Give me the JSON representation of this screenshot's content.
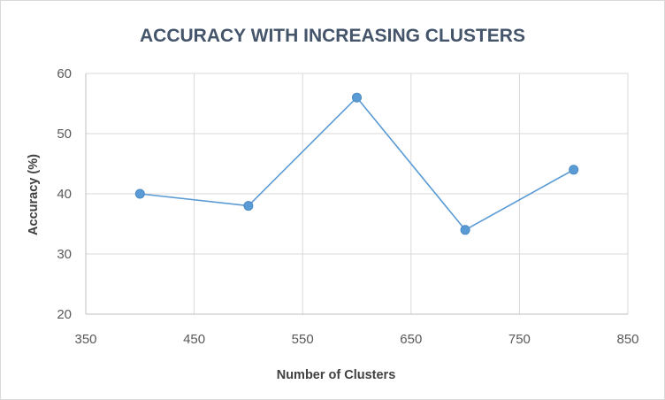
{
  "chart_data": {
    "type": "scatter",
    "title": "ACCURACY WITH INCREASING CLUSTERS",
    "xlabel": "Number of Clusters",
    "ylabel": "Accuracy (%)",
    "xlim": [
      350,
      850
    ],
    "ylim": [
      20,
      60
    ],
    "xticks": [
      350,
      450,
      550,
      650,
      750,
      850
    ],
    "yticks": [
      20,
      30,
      40,
      50,
      60
    ],
    "grid": true,
    "lines_connect_points": true,
    "series": [
      {
        "x": [
          400,
          500,
          600,
          700,
          800
        ],
        "y": [
          40,
          38,
          56,
          34,
          44
        ],
        "color": "#5b9bd5"
      }
    ]
  }
}
